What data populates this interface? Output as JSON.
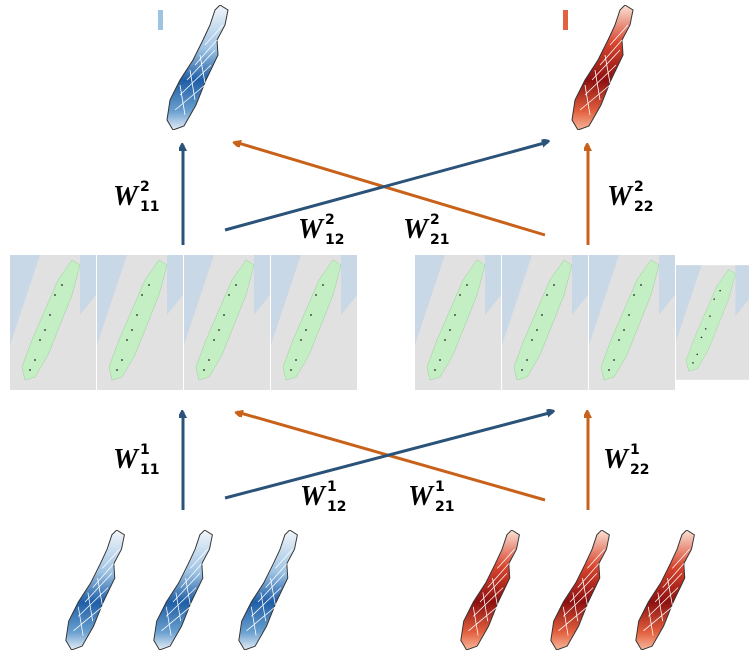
{
  "labels": [
    {
      "base": "W",
      "sup": "2",
      "sub": "11"
    },
    {
      "base": "W",
      "sup": "2",
      "sub": "12"
    },
    {
      "base": "W",
      "sup": "2",
      "sub": "21"
    },
    {
      "base": "W",
      "sup": "2",
      "sub": "22"
    },
    {
      "base": "W",
      "sup": "1",
      "sub": "11"
    },
    {
      "base": "W",
      "sup": "1",
      "sub": "12"
    },
    {
      "base": "W",
      "sup": "1",
      "sub": "21"
    },
    {
      "base": "W",
      "sup": "1",
      "sub": "22"
    }
  ]
}
